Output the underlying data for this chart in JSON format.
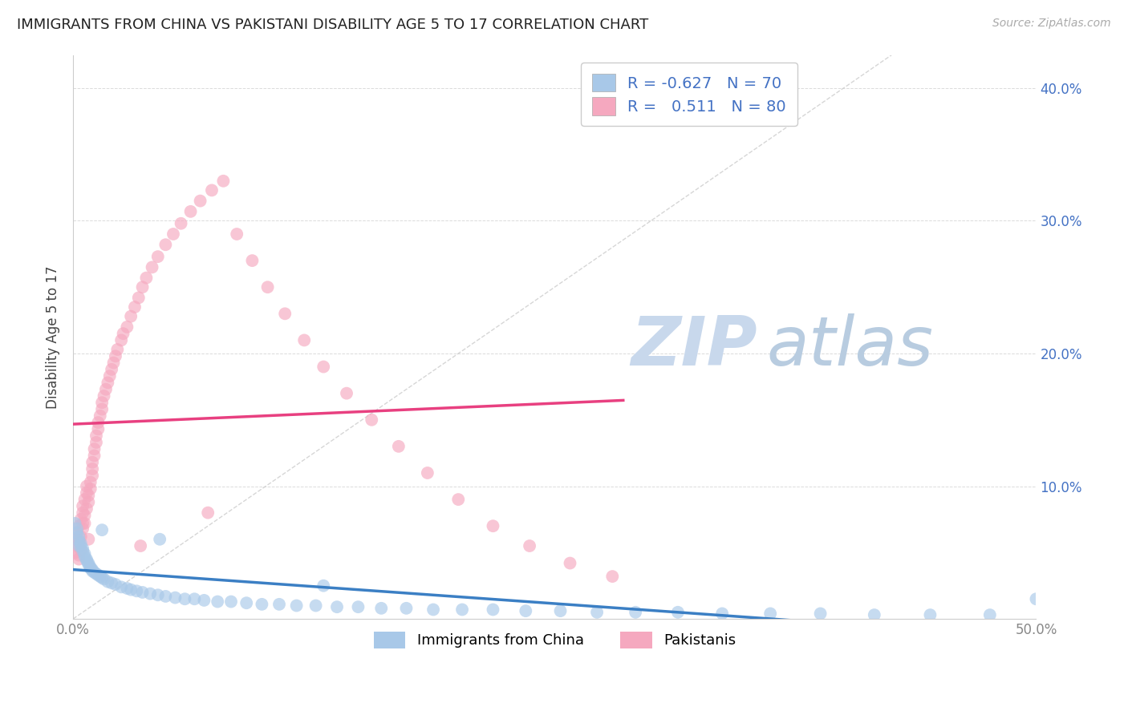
{
  "title": "IMMIGRANTS FROM CHINA VS PAKISTANI DISABILITY AGE 5 TO 17 CORRELATION CHART",
  "source": "Source: ZipAtlas.com",
  "ylabel": "Disability Age 5 to 17",
  "xmin": 0.0,
  "xmax": 0.5,
  "ymin": 0.0,
  "ymax": 0.425,
  "china_R": -0.627,
  "china_N": 70,
  "pakistan_R": 0.511,
  "pakistan_N": 80,
  "china_color": "#a8c8e8",
  "pakistan_color": "#f5a8bf",
  "china_line_color": "#3b7fc4",
  "pakistan_line_color": "#e84080",
  "diag_color": "#cccccc",
  "grid_color": "#cccccc",
  "background_color": "#ffffff",
  "title_color": "#222222",
  "source_color": "#aaaaaa",
  "axis_color": "#888888",
  "right_tick_color": "#4472c4",
  "legend_value_color": "#4472c4",
  "legend_label_color": "#333333",
  "watermark_zip_color": "#c8d8ec",
  "watermark_atlas_color": "#b8cce0",
  "scatter_size": 130,
  "scatter_alpha": 0.65,
  "china_x": [
    0.001,
    0.002,
    0.002,
    0.003,
    0.003,
    0.004,
    0.004,
    0.005,
    0.005,
    0.006,
    0.006,
    0.007,
    0.007,
    0.008,
    0.008,
    0.009,
    0.009,
    0.01,
    0.01,
    0.011,
    0.012,
    0.013,
    0.014,
    0.015,
    0.016,
    0.018,
    0.02,
    0.022,
    0.025,
    0.028,
    0.03,
    0.033,
    0.036,
    0.04,
    0.044,
    0.048,
    0.053,
    0.058,
    0.063,
    0.068,
    0.075,
    0.082,
    0.09,
    0.098,
    0.107,
    0.116,
    0.126,
    0.137,
    0.148,
    0.16,
    0.173,
    0.187,
    0.202,
    0.218,
    0.235,
    0.253,
    0.272,
    0.292,
    0.314,
    0.337,
    0.362,
    0.388,
    0.416,
    0.445,
    0.476,
    0.5,
    0.003,
    0.015,
    0.045,
    0.13
  ],
  "china_y": [
    0.072,
    0.068,
    0.065,
    0.062,
    0.059,
    0.057,
    0.055,
    0.053,
    0.051,
    0.049,
    0.047,
    0.045,
    0.044,
    0.042,
    0.041,
    0.039,
    0.038,
    0.037,
    0.036,
    0.035,
    0.034,
    0.033,
    0.032,
    0.031,
    0.03,
    0.028,
    0.027,
    0.026,
    0.024,
    0.023,
    0.022,
    0.021,
    0.02,
    0.019,
    0.018,
    0.017,
    0.016,
    0.015,
    0.015,
    0.014,
    0.013,
    0.013,
    0.012,
    0.011,
    0.011,
    0.01,
    0.01,
    0.009,
    0.009,
    0.008,
    0.008,
    0.007,
    0.007,
    0.007,
    0.006,
    0.006,
    0.005,
    0.005,
    0.005,
    0.004,
    0.004,
    0.004,
    0.003,
    0.003,
    0.003,
    0.015,
    0.055,
    0.067,
    0.06,
    0.025
  ],
  "pak_x": [
    0.001,
    0.001,
    0.002,
    0.002,
    0.003,
    0.003,
    0.003,
    0.004,
    0.004,
    0.004,
    0.005,
    0.005,
    0.005,
    0.006,
    0.006,
    0.006,
    0.007,
    0.007,
    0.007,
    0.008,
    0.008,
    0.009,
    0.009,
    0.01,
    0.01,
    0.01,
    0.011,
    0.011,
    0.012,
    0.012,
    0.013,
    0.013,
    0.014,
    0.015,
    0.015,
    0.016,
    0.017,
    0.018,
    0.019,
    0.02,
    0.021,
    0.022,
    0.023,
    0.025,
    0.026,
    0.028,
    0.03,
    0.032,
    0.034,
    0.036,
    0.038,
    0.041,
    0.044,
    0.048,
    0.052,
    0.056,
    0.061,
    0.066,
    0.072,
    0.078,
    0.085,
    0.093,
    0.101,
    0.11,
    0.12,
    0.13,
    0.142,
    0.155,
    0.169,
    0.184,
    0.2,
    0.218,
    0.237,
    0.258,
    0.28,
    0.003,
    0.005,
    0.008,
    0.035,
    0.07
  ],
  "pak_y": [
    0.05,
    0.06,
    0.055,
    0.065,
    0.045,
    0.058,
    0.07,
    0.052,
    0.062,
    0.075,
    0.08,
    0.068,
    0.085,
    0.072,
    0.09,
    0.078,
    0.095,
    0.083,
    0.1,
    0.088,
    0.093,
    0.098,
    0.103,
    0.108,
    0.113,
    0.118,
    0.123,
    0.128,
    0.133,
    0.138,
    0.143,
    0.148,
    0.153,
    0.158,
    0.163,
    0.168,
    0.173,
    0.178,
    0.183,
    0.188,
    0.193,
    0.198,
    0.203,
    0.21,
    0.215,
    0.22,
    0.228,
    0.235,
    0.242,
    0.25,
    0.257,
    0.265,
    0.273,
    0.282,
    0.29,
    0.298,
    0.307,
    0.315,
    0.323,
    0.33,
    0.29,
    0.27,
    0.25,
    0.23,
    0.21,
    0.19,
    0.17,
    0.15,
    0.13,
    0.11,
    0.09,
    0.07,
    0.055,
    0.042,
    0.032,
    0.048,
    0.072,
    0.06,
    0.055,
    0.08
  ]
}
